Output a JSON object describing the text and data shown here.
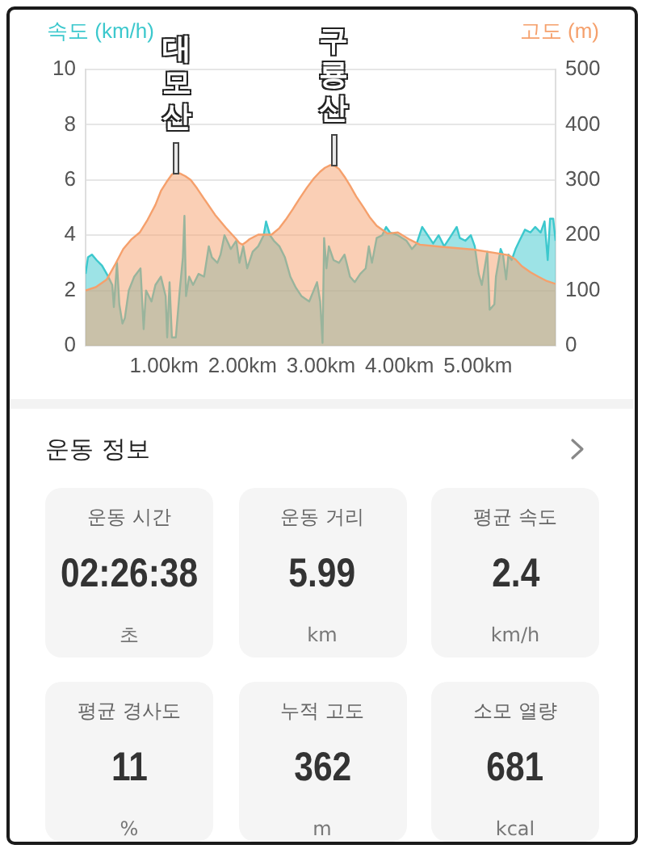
{
  "chart_data": [
    {
      "type": "area",
      "ylabel": "속도 (km/h)",
      "y2label": "고도 (m)",
      "xlim": [
        0,
        5.99
      ],
      "xticks": [
        {
          "value": 1,
          "label": "1.00km"
        },
        {
          "value": 2,
          "label": "2.00km"
        },
        {
          "value": 3,
          "label": "3.00km"
        },
        {
          "value": 4,
          "label": "4.00km"
        },
        {
          "value": 5,
          "label": "5.00km"
        }
      ],
      "ylim": [
        0,
        10
      ],
      "yticks": [
        0,
        2,
        4,
        6,
        8,
        10
      ],
      "y2lim": [
        0,
        500
      ],
      "y2ticks": [
        0,
        100,
        200,
        300,
        400,
        500
      ],
      "grid": "y",
      "series": [
        {
          "color": "#3cc8cd",
          "x": [
            0,
            0.03,
            0.08,
            0.14,
            0.21,
            0.27,
            0.34,
            0.36,
            0.4,
            0.43,
            0.47,
            0.5,
            0.55,
            0.62,
            0.7,
            0.74,
            0.77,
            0.84,
            0.89,
            0.96,
            1.02,
            1.04,
            1.07,
            1.1,
            1.15,
            1.2,
            1.24,
            1.26,
            1.28,
            1.32,
            1.37,
            1.44,
            1.51,
            1.57,
            1.61,
            1.68,
            1.72,
            1.77,
            1.82,
            1.85,
            1.92,
            1.96,
            2.01,
            2.06,
            2.13,
            2.2,
            2.27,
            2.3,
            2.35,
            2.4,
            2.47,
            2.54,
            2.61,
            2.68,
            2.75,
            2.85,
            2.95,
            2.99,
            3.02,
            3.04,
            3.07,
            3.1,
            3.16,
            3.23,
            3.3,
            3.37,
            3.43,
            3.5,
            3.57,
            3.61,
            3.65,
            3.71,
            3.78,
            3.83,
            3.88,
            3.98,
            4.09,
            4.16,
            4.22,
            4.29,
            4.36,
            4.43,
            4.5,
            4.57,
            4.64,
            4.73,
            4.77,
            4.84,
            4.91,
            4.96,
            5.01,
            5.05,
            5.12,
            5.15,
            5.21,
            5.23,
            5.29,
            5.32,
            5.36,
            5.39,
            5.43,
            5.48,
            5.53,
            5.6,
            5.67,
            5.73,
            5.8,
            5.85,
            5.89,
            5.92,
            5.96,
            5.99
          ],
          "values": [
            2.6,
            3.2,
            3.3,
            3.1,
            2.9,
            2.6,
            2.2,
            1.4,
            3.0,
            1.5,
            0.8,
            1.0,
            2.0,
            2.5,
            2.8,
            0.6,
            2.0,
            1.6,
            2.2,
            2.5,
            1.8,
            0.3,
            2.3,
            0.3,
            0.3,
            2.0,
            3.2,
            4.7,
            1.8,
            2.5,
            2.2,
            2.6,
            2.5,
            3.6,
            3.2,
            3.0,
            3.3,
            4.0,
            3.7,
            3.5,
            3.8,
            3.0,
            3.6,
            2.8,
            3.4,
            3.6,
            4.0,
            4.5,
            4.0,
            3.8,
            3.6,
            3.2,
            2.5,
            2.1,
            1.8,
            1.6,
            2.3,
            1.6,
            0.1,
            3.9,
            2.8,
            3.6,
            3.1,
            3.0,
            3.3,
            2.5,
            2.3,
            2.6,
            2.8,
            3.6,
            3.0,
            3.9,
            4.0,
            4.3,
            4.1,
            4.0,
            3.8,
            3.5,
            3.7,
            4.3,
            4.0,
            3.7,
            4.0,
            3.6,
            3.9,
            4.3,
            3.9,
            3.8,
            4.0,
            3.6,
            2.6,
            2.2,
            3.4,
            1.3,
            1.5,
            2.5,
            3.5,
            3.3,
            2.4,
            3.3,
            3.1,
            3.5,
            3.8,
            4.2,
            4.1,
            4.3,
            4.1,
            4.5,
            3.1,
            4.6,
            4.6,
            3.8
          ]
        },
        {
          "color": "#f5a06c",
          "axis": "y2",
          "x": [
            0,
            0.13,
            0.27,
            0.38,
            0.48,
            0.58,
            0.69,
            0.79,
            0.89,
            0.96,
            1.03,
            1.1,
            1.15,
            1.2,
            1.27,
            1.34,
            1.42,
            1.51,
            1.65,
            1.79,
            1.92,
            1.96,
            2.0,
            2.04,
            2.09,
            2.2,
            2.37,
            2.47,
            2.55,
            2.64,
            2.73,
            2.82,
            2.91,
            2.99,
            3.05,
            3.12,
            3.18,
            3.23,
            3.3,
            3.37,
            3.45,
            3.54,
            3.62,
            3.71,
            3.85,
            3.98,
            4.12,
            4.26,
            4.53,
            4.95,
            5.22,
            5.39,
            5.48,
            5.56,
            5.67,
            5.77,
            5.88,
            5.99
          ],
          "values": [
            100,
            106,
            120,
            148,
            175,
            192,
            205,
            228,
            255,
            280,
            296,
            310,
            313,
            312,
            307,
            300,
            285,
            266,
            237,
            213,
            193,
            186,
            183,
            187,
            193,
            201,
            201,
            213,
            228,
            247,
            267,
            286,
            303,
            315,
            322,
            327,
            325,
            320,
            306,
            290,
            270,
            251,
            233,
            217,
            203,
            205,
            193,
            183,
            179,
            174,
            168,
            164,
            156,
            144,
            133,
            125,
            117,
            112
          ]
        }
      ],
      "annotations": [
        {
          "text": "대모산",
          "x": 1.16,
          "y": 6.2
        },
        {
          "text": "구룡산",
          "x": 3.16,
          "y": 6.5
        }
      ]
    },
    {
      "type": "other",
      "title": "운동 정보",
      "annotations": [
        "운동 시간",
        "02:26:38",
        "초",
        "운동 거리",
        "5.99",
        "km",
        "평균 속도",
        "2.4",
        "km/h",
        "평균 경사도",
        "11",
        "%",
        "누적 고도",
        "362",
        "m",
        "소모 열량",
        "681",
        "kcal"
      ]
    }
  ]
}
